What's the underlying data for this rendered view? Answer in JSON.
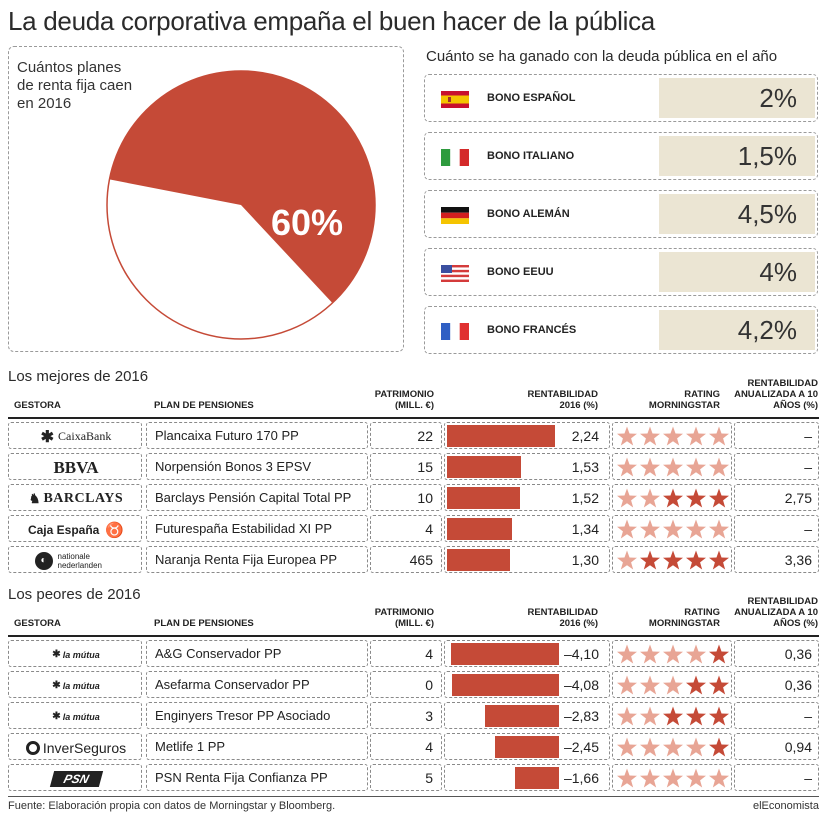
{
  "title": "La deuda corporativa empaña el buen hacer de la pública",
  "pie": {
    "caption": "Cuántos planes de renta fija caen en 2016",
    "label": "60%",
    "value": 60,
    "fill_color": "#c54a37",
    "rest_color": "#ffffff"
  },
  "gov": {
    "title": "Cuánto se ha ganado con la deuda pública en el año",
    "bonds": [
      {
        "name": "BONO ESPAÑOL",
        "value": "2%",
        "flag": "es"
      },
      {
        "name": "BONO ITALIANO",
        "value": "1,5%",
        "flag": "it"
      },
      {
        "name": "BONO ALEMÁN",
        "value": "4,5%",
        "flag": "de"
      },
      {
        "name": "BONO EEUU",
        "value": "4%",
        "flag": "us"
      },
      {
        "name": "BONO FRANCÉS",
        "value": "4,2%",
        "flag": "fr"
      }
    ]
  },
  "headers": {
    "gestora": "GESTORA",
    "plan": "PLAN DE PENSIONES",
    "patrimonio": "PATRIMONIO (MILL. €)",
    "rentabilidad": "RENTABILIDAD 2016 (%)",
    "rating": "RATING MORNINGSTAR",
    "anual": "RENTABILIDAD ANUALIZADA A 10 AÑOS (%)"
  },
  "best": {
    "title": "Los mejores de 2016",
    "rows": [
      {
        "gestora": "CaixaBank",
        "plan": "Plancaixa Futuro 170 PP",
        "patrimonio": "22",
        "rent": 2.24,
        "rent_label": "2,24",
        "stars": 0,
        "anual": "–"
      },
      {
        "gestora": "BBVA",
        "plan": "Norpensión Bonos 3 EPSV",
        "patrimonio": "15",
        "rent": 1.53,
        "rent_label": "1,53",
        "stars": 0,
        "anual": "–"
      },
      {
        "gestora": "BARCLAYS",
        "plan": "Barclays Pensión Capital Total PP",
        "patrimonio": "10",
        "rent": 1.52,
        "rent_label": "1,52",
        "stars": 3,
        "anual": "2,75"
      },
      {
        "gestora": "Caja España",
        "plan": "Futurespaña Estabilidad XI PP",
        "patrimonio": "4",
        "rent": 1.34,
        "rent_label": "1,34",
        "stars": 0,
        "anual": "–"
      },
      {
        "gestora": "nationale nederlanden",
        "plan": "Naranja Renta Fija Europea PP",
        "patrimonio": "465",
        "rent": 1.3,
        "rent_label": "1,30",
        "stars": 4,
        "anual": "3,36"
      }
    ]
  },
  "worst": {
    "title": "Los peores de 2016",
    "rows": [
      {
        "gestora": "la mútua",
        "plan": "A&G Conservador PP",
        "patrimonio": "4",
        "rent": -4.1,
        "rent_label": "–4,10",
        "stars": 1,
        "anual": "0,36"
      },
      {
        "gestora": "la mútua",
        "plan": "Asefarma Conservador PP",
        "patrimonio": "0",
        "rent": -4.08,
        "rent_label": "–4,08",
        "stars": 2,
        "anual": "0,36"
      },
      {
        "gestora": "la mútua",
        "plan": "Enginyers Tresor PP Asociado",
        "patrimonio": "3",
        "rent": -2.83,
        "rent_label": "–2,83",
        "stars": 3,
        "anual": "–"
      },
      {
        "gestora": "InverSeguros",
        "plan": "Metlife 1 PP",
        "patrimonio": "4",
        "rent": -2.45,
        "rent_label": "–2,45",
        "stars": 1,
        "anual": "0,94"
      },
      {
        "gestora": "PSN",
        "plan": "PSN Renta Fija Confianza PP",
        "patrimonio": "5",
        "rent": -1.66,
        "rent_label": "–1,66",
        "stars": 0,
        "anual": "–"
      }
    ]
  },
  "footer": {
    "source": "Fuente: Elaboración propia con datos de Morningstar y Bloomberg.",
    "brand": "elEconomista"
  },
  "colors": {
    "bar": "#c54a37",
    "star_on": "#c54a37",
    "star_off": "#e8a595",
    "bond_bg": "#ebe5d3"
  },
  "chart_data": [
    {
      "type": "pie",
      "title": "Cuántos planes de renta fija caen en 2016",
      "values": [
        60,
        40
      ],
      "labels": [
        "60%",
        ""
      ]
    },
    {
      "type": "table",
      "title": "Cuánto se ha ganado con la deuda pública en el año",
      "categories": [
        "BONO ESPAÑOL",
        "BONO ITALIANO",
        "BONO ALEMÁN",
        "BONO EEUU",
        "BONO FRANCÉS"
      ],
      "values": [
        2,
        1.5,
        4.5,
        4,
        4.2
      ]
    },
    {
      "type": "bar",
      "title": "Los mejores de 2016",
      "categories": [
        "Plancaixa Futuro 170 PP",
        "Norpensión Bonos 3 EPSV",
        "Barclays Pensión Capital Total PP",
        "Futurespaña Estabilidad XI PP",
        "Naranja Renta Fija Europea PP"
      ],
      "series": [
        {
          "name": "RENTABILIDAD 2016 (%)",
          "values": [
            2.24,
            1.53,
            1.52,
            1.34,
            1.3
          ]
        }
      ]
    },
    {
      "type": "bar",
      "title": "Los peores de 2016",
      "categories": [
        "A&G Conservador PP",
        "Asefarma Conservador PP",
        "Enginyers Tresor PP Asociado",
        "Metlife 1 PP",
        "PSN Renta Fija Confianza PP"
      ],
      "series": [
        {
          "name": "RENTABILIDAD 2016 (%)",
          "values": [
            -4.1,
            -4.08,
            -2.83,
            -2.45,
            -1.66
          ]
        }
      ]
    }
  ]
}
